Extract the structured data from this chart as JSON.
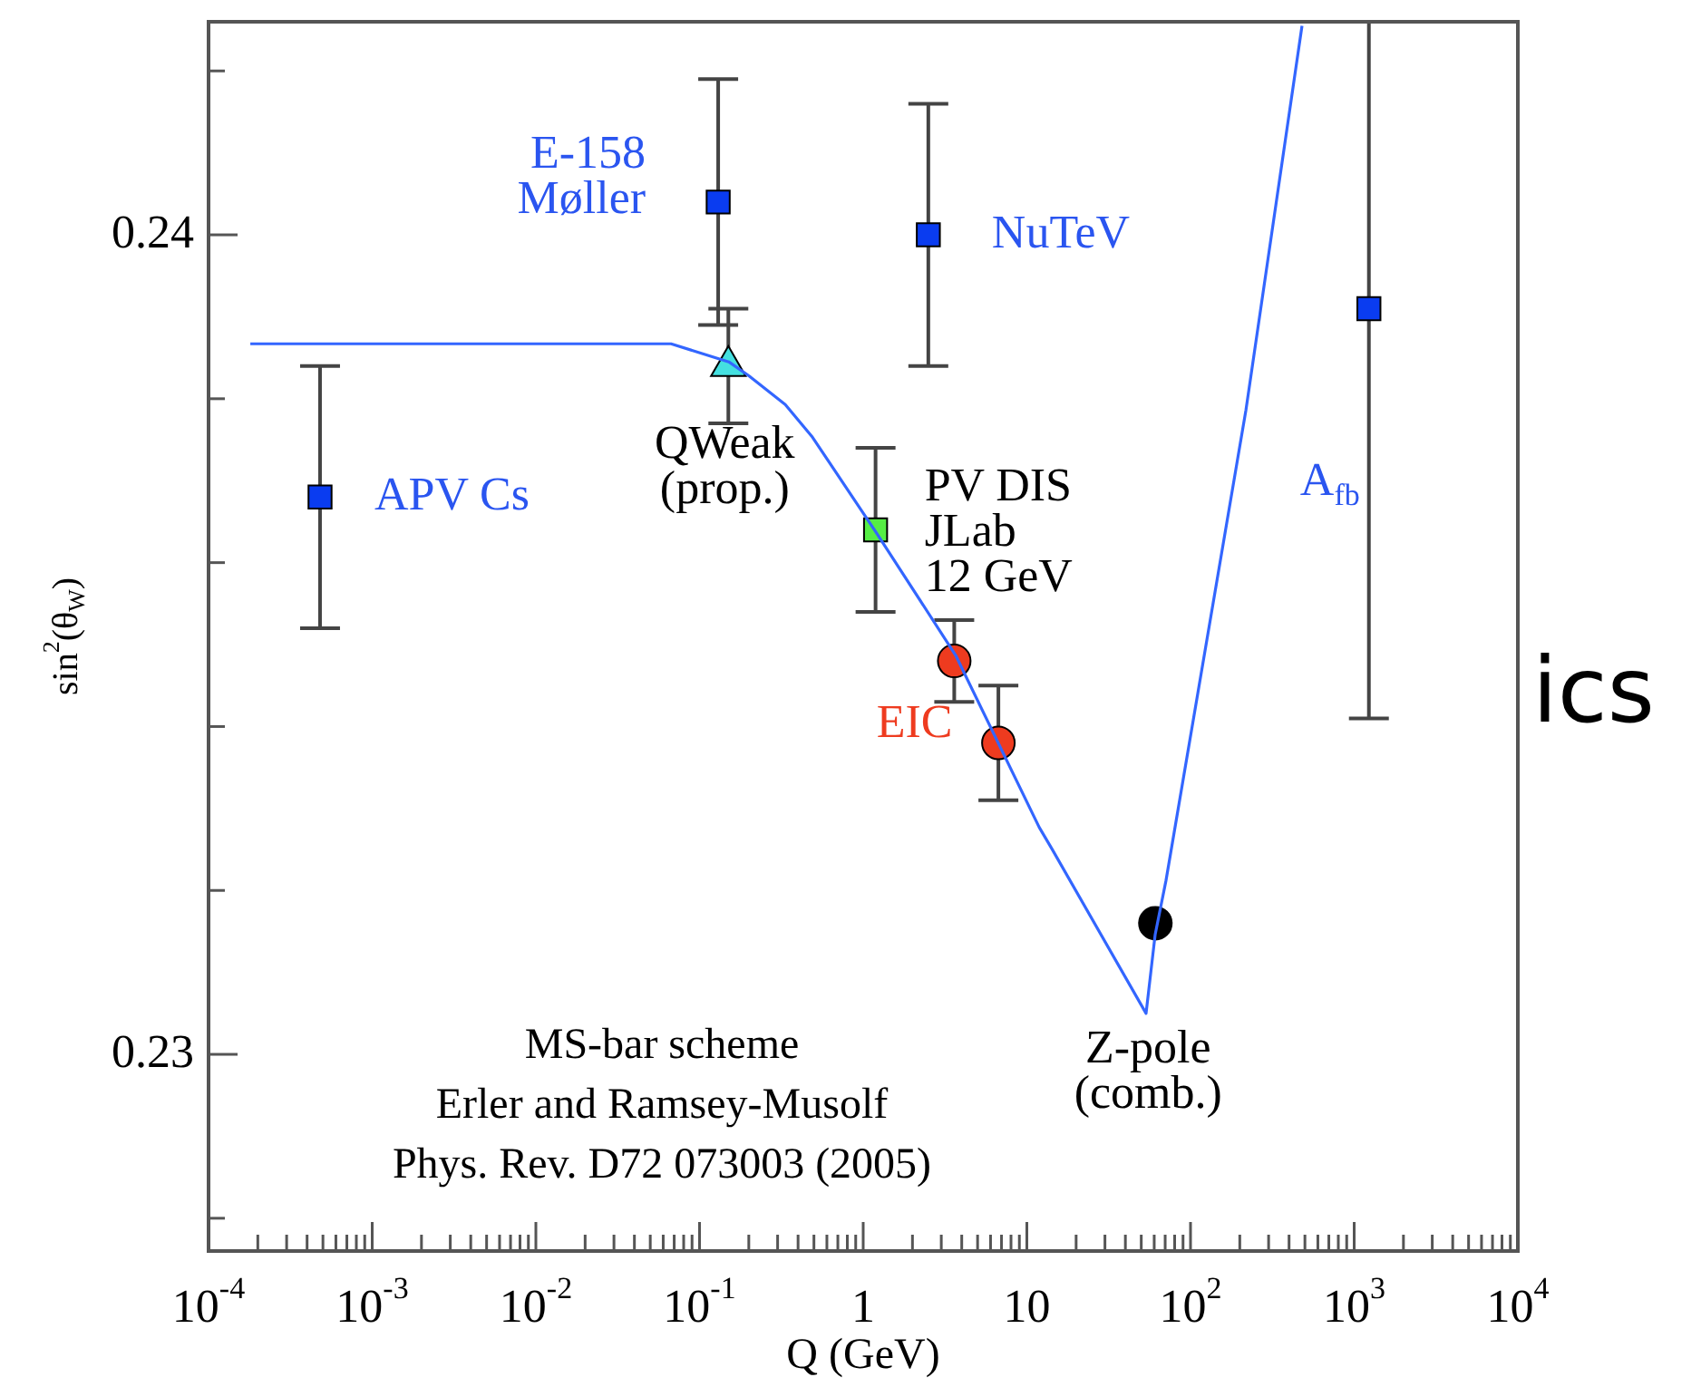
{
  "chart_data": {
    "type": "scatter",
    "xlabel": "Q (GeV)",
    "ylabel": "sin$^{2}$(θ$_{W}$)",
    "log": "x",
    "xlim": [
      0.0001,
      10000
    ],
    "ylim": [
      0.2276,
      0.2426
    ],
    "xticks": [
      {
        "value": 0.0001,
        "label": "10$^{-4}$"
      },
      {
        "value": 0.0002,
        "label": null
      },
      {
        "value": 0.0003,
        "label": null
      },
      {
        "value": 0.0004,
        "label": null
      },
      {
        "value": 0.0005,
        "label": null
      },
      {
        "value": 0.0006,
        "label": null
      },
      {
        "value": 0.0007,
        "label": null
      },
      {
        "value": 0.0008,
        "label": null
      },
      {
        "value": 0.0009,
        "label": null
      },
      {
        "value": 0.001,
        "label": "10$^{-3}$"
      },
      {
        "value": 0.002,
        "label": null
      },
      {
        "value": 0.003,
        "label": null
      },
      {
        "value": 0.004,
        "label": null
      },
      {
        "value": 0.005,
        "label": null
      },
      {
        "value": 0.006,
        "label": null
      },
      {
        "value": 0.007,
        "label": null
      },
      {
        "value": 0.008,
        "label": null
      },
      {
        "value": 0.009,
        "label": null
      },
      {
        "value": 0.01,
        "label": "10$^{-2}$"
      },
      {
        "value": 0.02,
        "label": null
      },
      {
        "value": 0.03,
        "label": null
      },
      {
        "value": 0.04,
        "label": null
      },
      {
        "value": 0.05,
        "label": null
      },
      {
        "value": 0.06,
        "label": null
      },
      {
        "value": 0.07,
        "label": null
      },
      {
        "value": 0.08,
        "label": null
      },
      {
        "value": 0.09,
        "label": null
      },
      {
        "value": 0.1,
        "label": "10$^{-1}$"
      },
      {
        "value": 0.2,
        "label": null
      },
      {
        "value": 0.3,
        "label": null
      },
      {
        "value": 0.4,
        "label": null
      },
      {
        "value": 0.5,
        "label": null
      },
      {
        "value": 0.6,
        "label": null
      },
      {
        "value": 0.7,
        "label": null
      },
      {
        "value": 0.8,
        "label": null
      },
      {
        "value": 0.9,
        "label": null
      },
      1,
      {
        "value": 2,
        "label": null
      },
      {
        "value": 3,
        "label": null
      },
      {
        "value": 4,
        "label": null
      },
      {
        "value": 5,
        "label": null
      },
      {
        "value": 6,
        "label": null
      },
      {
        "value": 7,
        "label": null
      },
      {
        "value": 8,
        "label": null
      },
      {
        "value": 9,
        "label": null
      },
      10,
      {
        "value": 20,
        "label": null
      },
      {
        "value": 30,
        "label": null
      },
      {
        "value": 40,
        "label": null
      },
      {
        "value": 50,
        "label": null
      },
      {
        "value": 60,
        "label": null
      },
      {
        "value": 70,
        "label": null
      },
      {
        "value": 80,
        "label": null
      },
      {
        "value": 90,
        "label": null
      },
      {
        "value": 100,
        "label": "10$^{2}$"
      },
      {
        "value": 200,
        "label": null
      },
      {
        "value": 300,
        "label": null
      },
      {
        "value": 400,
        "label": null
      },
      {
        "value": 500,
        "label": null
      },
      {
        "value": 600,
        "label": null
      },
      {
        "value": 700,
        "label": null
      },
      {
        "value": 800,
        "label": null
      },
      {
        "value": 900,
        "label": null
      },
      {
        "value": 1000,
        "label": "10$^{3}$"
      },
      {
        "value": 2000,
        "label": null
      },
      {
        "value": 3000,
        "label": null
      },
      {
        "value": 4000,
        "label": null
      },
      {
        "value": 5000,
        "label": null
      },
      {
        "value": 6000,
        "label": null
      },
      {
        "value": 7000,
        "label": null
      },
      {
        "value": 8000,
        "label": null
      },
      {
        "value": 9000,
        "label": null
      },
      {
        "value": 10000,
        "label": "10$^{4}$"
      }
    ],
    "yticks": [
      {
        "value": 0.228,
        "label": null
      },
      0.23,
      {
        "value": 0.232,
        "label": null
      },
      {
        "value": 0.234,
        "label": null
      },
      {
        "value": 0.236,
        "label": null
      },
      {
        "value": 0.238,
        "label": null
      },
      0.24,
      {
        "value": 0.242,
        "label": null
      }
    ],
    "series": [
      {
        "type": "line",
        "color": "#3366ff",
        "marker": "none",
        "x": [
          0.00018,
          0.067,
          0.151,
          0.2,
          0.334,
          0.49,
          1.19,
          3.67,
          11.9,
          14.2,
          53.5,
          60.8,
          70.8,
          218,
          480
        ],
        "values": [
          0.23867,
          0.23867,
          0.23845,
          0.23828,
          0.23793,
          0.23753,
          0.23638,
          0.23487,
          0.23277,
          0.23251,
          0.2305,
          0.23146,
          0.23212,
          0.23786,
          0.24255
        ]
      },
      {
        "name": "APV Cs",
        "color": "#2a55f0",
        "colors": [
          "#0a3cf0"
        ],
        "marker": "square",
        "x": [
          0.00048
        ],
        "values": [
          0.2368
        ],
        "errors": [
          0.0016
        ]
      },
      {
        "name": "E-158\nMøller",
        "color": "#2a55f0",
        "colors": [
          "#0a3cf0"
        ],
        "marker": "square",
        "x": [
          0.13
        ],
        "values": [
          0.2404
        ],
        "errors": [
          0.0015
        ]
      },
      {
        "name": "QWeak\n(prop.)",
        "color": "#000000",
        "colors": [
          "#44e0e0"
        ],
        "marker": "triangle",
        "x": [
          0.15
        ],
        "values": [
          0.2384
        ],
        "errors": [
          0.0007
        ]
      },
      {
        "name": "NuTeV",
        "color": "#2a55f0",
        "colors": [
          "#0a3cf0"
        ],
        "marker": "square",
        "x": [
          2.5
        ],
        "values": [
          0.24
        ],
        "errors": [
          0.0016
        ]
      },
      {
        "name": "PV DIS\nJLab\n12 GeV",
        "color": "#000000",
        "colors": [
          "#55ee44"
        ],
        "marker": "square",
        "x": [
          1.19
        ],
        "values": [
          0.2364
        ],
        "errors": [
          0.001
        ]
      },
      {
        "name": "EIC",
        "color": "#ee3b1f",
        "colors": [
          "#ee3b1f",
          "#ee3b1f"
        ],
        "marker": "circle",
        "x": [
          3.6,
          6.7
        ],
        "values": [
          0.2348,
          0.2338
        ],
        "errors": [
          0.0005,
          0.0007
        ]
      },
      {
        "name": "Z-pole\n(comb.)",
        "color": "#000000",
        "colors": [
          "#000000"
        ],
        "marker": "circle",
        "x": [
          61
        ],
        "values": [
          0.2316
        ]
      },
      {
        "name": "A$_{fb}$",
        "color": "#2a55f0",
        "colors": [
          "#0a3cf0"
        ],
        "marker": "square",
        "x": [
          1230
        ],
        "values": [
          0.2391
        ],
        "errors": [
          [
            0.2341,
            0.2426
          ]
        ]
      }
    ],
    "annotations": [
      "MS-bar scheme",
      "Erler and Ramsey-Musolf",
      "Phys. Rev. D72 073003 (2005)",
      "ics"
    ]
  }
}
